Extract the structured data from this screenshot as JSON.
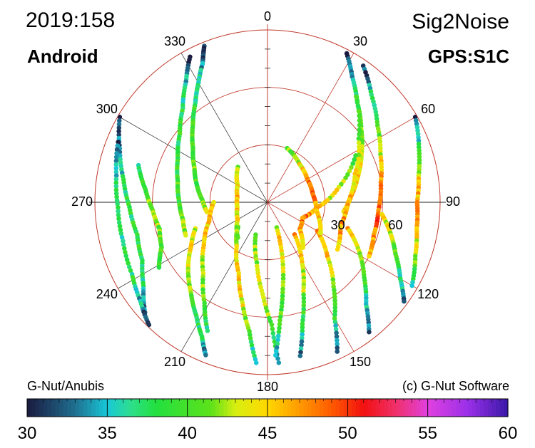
{
  "header": {
    "date": "2019:158",
    "title": "Sig2Noise",
    "receiver": "Android",
    "signal": "GPS:S1C"
  },
  "footer": {
    "left_credit": "G-Nut/Anubis",
    "right_credit": "(c) G-Nut Software"
  },
  "chart_data": {
    "type": "scatter",
    "projection": "polar-skyplot",
    "radial_quantity": "zenith angle",
    "radial_range": [
      0,
      90
    ],
    "radial_rings": [
      0,
      30,
      60,
      90
    ],
    "radial_tick_labels": [
      "30",
      "60"
    ],
    "azimuth_tick_labels": [
      "0",
      "30",
      "60",
      "90",
      "120",
      "150",
      "180",
      "210",
      "240",
      "270",
      "300",
      "330"
    ],
    "color_quantity": "SNR",
    "colorbar": {
      "range": [
        30,
        60
      ],
      "tick_labels": [
        "30",
        "35",
        "40",
        "45",
        "50",
        "55",
        "60"
      ],
      "stops": [
        {
          "v": 30,
          "color": "#1a1a40"
        },
        {
          "v": 33,
          "color": "#1f6f8f"
        },
        {
          "v": 35,
          "color": "#18c8d8"
        },
        {
          "v": 36.5,
          "color": "#2edf8a"
        },
        {
          "v": 38,
          "color": "#22e040"
        },
        {
          "v": 41.5,
          "color": "#5ee21a"
        },
        {
          "v": 43,
          "color": "#d8ee10"
        },
        {
          "v": 45,
          "color": "#ffd800"
        },
        {
          "v": 47,
          "color": "#ff9a00"
        },
        {
          "v": 49,
          "color": "#ff5a00"
        },
        {
          "v": 51,
          "color": "#f21010"
        },
        {
          "v": 53,
          "color": "#f0306a"
        },
        {
          "v": 55,
          "color": "#e040e0"
        },
        {
          "v": 57.5,
          "color": "#9a30e8"
        },
        {
          "v": 60,
          "color": "#3a18a8"
        }
      ]
    },
    "tracks": [
      {
        "az": [
          338,
          335,
          330,
          324,
          316,
          306,
          295,
          284,
          272,
          261
        ],
        "zen": [
          88,
          80,
          72,
          64,
          56,
          48,
          42,
          38,
          34,
          32
        ],
        "snr": [
          30,
          33,
          36,
          38,
          39,
          40,
          41,
          40,
          42,
          44
        ]
      },
      {
        "az": [
          332,
          326,
          318,
          308,
          296,
          283,
          270,
          258,
          248
        ],
        "zen": [
          86,
          76,
          66,
          58,
          52,
          48,
          46,
          45,
          46
        ],
        "snr": [
          31,
          35,
          38,
          39,
          38,
          40,
          39,
          41,
          43
        ]
      },
      {
        "az": [
          300,
          290,
          279,
          268,
          256,
          245,
          236,
          228
        ],
        "zen": [
          89,
          82,
          76,
          72,
          70,
          72,
          78,
          86
        ],
        "snr": [
          30,
          34,
          37,
          38,
          39,
          38,
          36,
          32
        ]
      },
      {
        "az": [
          292,
          280,
          268,
          255,
          242,
          232,
          224
        ],
        "zen": [
          84,
          80,
          78,
          78,
          80,
          84,
          89
        ],
        "snr": [
          32,
          36,
          38,
          37,
          38,
          35,
          31
        ]
      },
      {
        "az": [
          286,
          276,
          266,
          256,
          247,
          239
        ],
        "zen": [
          70,
          64,
          60,
          58,
          60,
          66
        ],
        "snr": [
          37,
          40,
          42,
          41,
          40,
          38
        ]
      },
      {
        "az": [
          28,
          34,
          42,
          52,
          63,
          74,
          85,
          97
        ],
        "zen": [
          88,
          79,
          70,
          62,
          55,
          49,
          44,
          40
        ],
        "snr": [
          30,
          34,
          38,
          41,
          43,
          45,
          46,
          44
        ]
      },
      {
        "az": [
          35,
          44,
          55,
          67,
          80,
          94,
          107,
          118
        ],
        "zen": [
          87,
          78,
          70,
          64,
          60,
          58,
          58,
          60
        ],
        "snr": [
          31,
          36,
          40,
          44,
          47,
          49,
          48,
          45
        ]
      },
      {
        "az": [
          60,
          70,
          80,
          90,
          100,
          110,
          120
        ],
        "zen": [
          89,
          84,
          80,
          78,
          79,
          82,
          87
        ],
        "snr": [
          31,
          38,
          44,
          47,
          46,
          42,
          35
        ]
      },
      {
        "az": [
          40,
          55,
          72,
          90,
          108,
          124
        ],
        "zen": [
          72,
          58,
          48,
          42,
          40,
          44
        ],
        "snr": [
          38,
          41,
          44,
          46,
          47,
          45
        ]
      },
      {
        "az": [
          62,
          78,
          96,
          114,
          130,
          142
        ],
        "zen": [
          52,
          38,
          26,
          20,
          22,
          30
        ],
        "snr": [
          40,
          43,
          46,
          48,
          47,
          44
        ]
      },
      {
        "az": [
          250,
          240,
          230,
          220,
          212,
          206,
          202
        ],
        "zen": [
          40,
          46,
          54,
          62,
          70,
          78,
          86
        ],
        "snr": [
          42,
          44,
          43,
          41,
          39,
          36,
          33
        ]
      },
      {
        "az": [
          270,
          252,
          236,
          222,
          212,
          205
        ],
        "zen": [
          28,
          32,
          40,
          50,
          62,
          74
        ],
        "snr": [
          45,
          46,
          44,
          42,
          40,
          37
        ]
      },
      {
        "az": [
          230,
          215,
          202,
          194,
          188,
          184
        ],
        "zen": [
          20,
          28,
          40,
          54,
          68,
          84
        ],
        "snr": [
          40,
          43,
          45,
          44,
          40,
          35
        ]
      },
      {
        "az": [
          200,
          190,
          183,
          178,
          176
        ],
        "zen": [
          18,
          32,
          48,
          64,
          84
        ],
        "snr": [
          41,
          42,
          44,
          40,
          34
        ]
      },
      {
        "az": [
          160,
          165,
          170,
          174,
          177
        ],
        "zen": [
          14,
          30,
          46,
          62,
          80
        ],
        "snr": [
          44,
          45,
          42,
          39,
          35
        ]
      },
      {
        "az": [
          140,
          150,
          158,
          164,
          168
        ],
        "zen": [
          22,
          36,
          50,
          66,
          82
        ],
        "snr": [
          46,
          44,
          42,
          38,
          33
        ]
      },
      {
        "az": [
          120,
          132,
          142,
          150,
          155
        ],
        "zen": [
          30,
          42,
          56,
          70,
          86
        ],
        "snr": [
          47,
          45,
          42,
          38,
          32
        ]
      },
      {
        "az": [
          108,
          118,
          128,
          136,
          142
        ],
        "zen": [
          44,
          54,
          64,
          74,
          86
        ],
        "snr": [
          46,
          44,
          40,
          36,
          31
        ]
      },
      {
        "az": [
          96,
          104,
          112,
          120,
          126
        ],
        "zen": [
          60,
          66,
          72,
          80,
          88
        ],
        "snr": [
          45,
          43,
          40,
          36,
          32
        ]
      },
      {
        "az": [
          320,
          300,
          280,
          260,
          240,
          220
        ],
        "zen": [
          24,
          18,
          16,
          16,
          18,
          24
        ],
        "snr": [
          42,
          44,
          46,
          45,
          44,
          41
        ]
      },
      {
        "az": [
          20,
          40,
          60,
          80,
          100,
          120
        ],
        "zen": [
          30,
          26,
          24,
          24,
          26,
          32
        ],
        "snr": [
          40,
          44,
          48,
          49,
          46,
          43
        ]
      }
    ]
  }
}
